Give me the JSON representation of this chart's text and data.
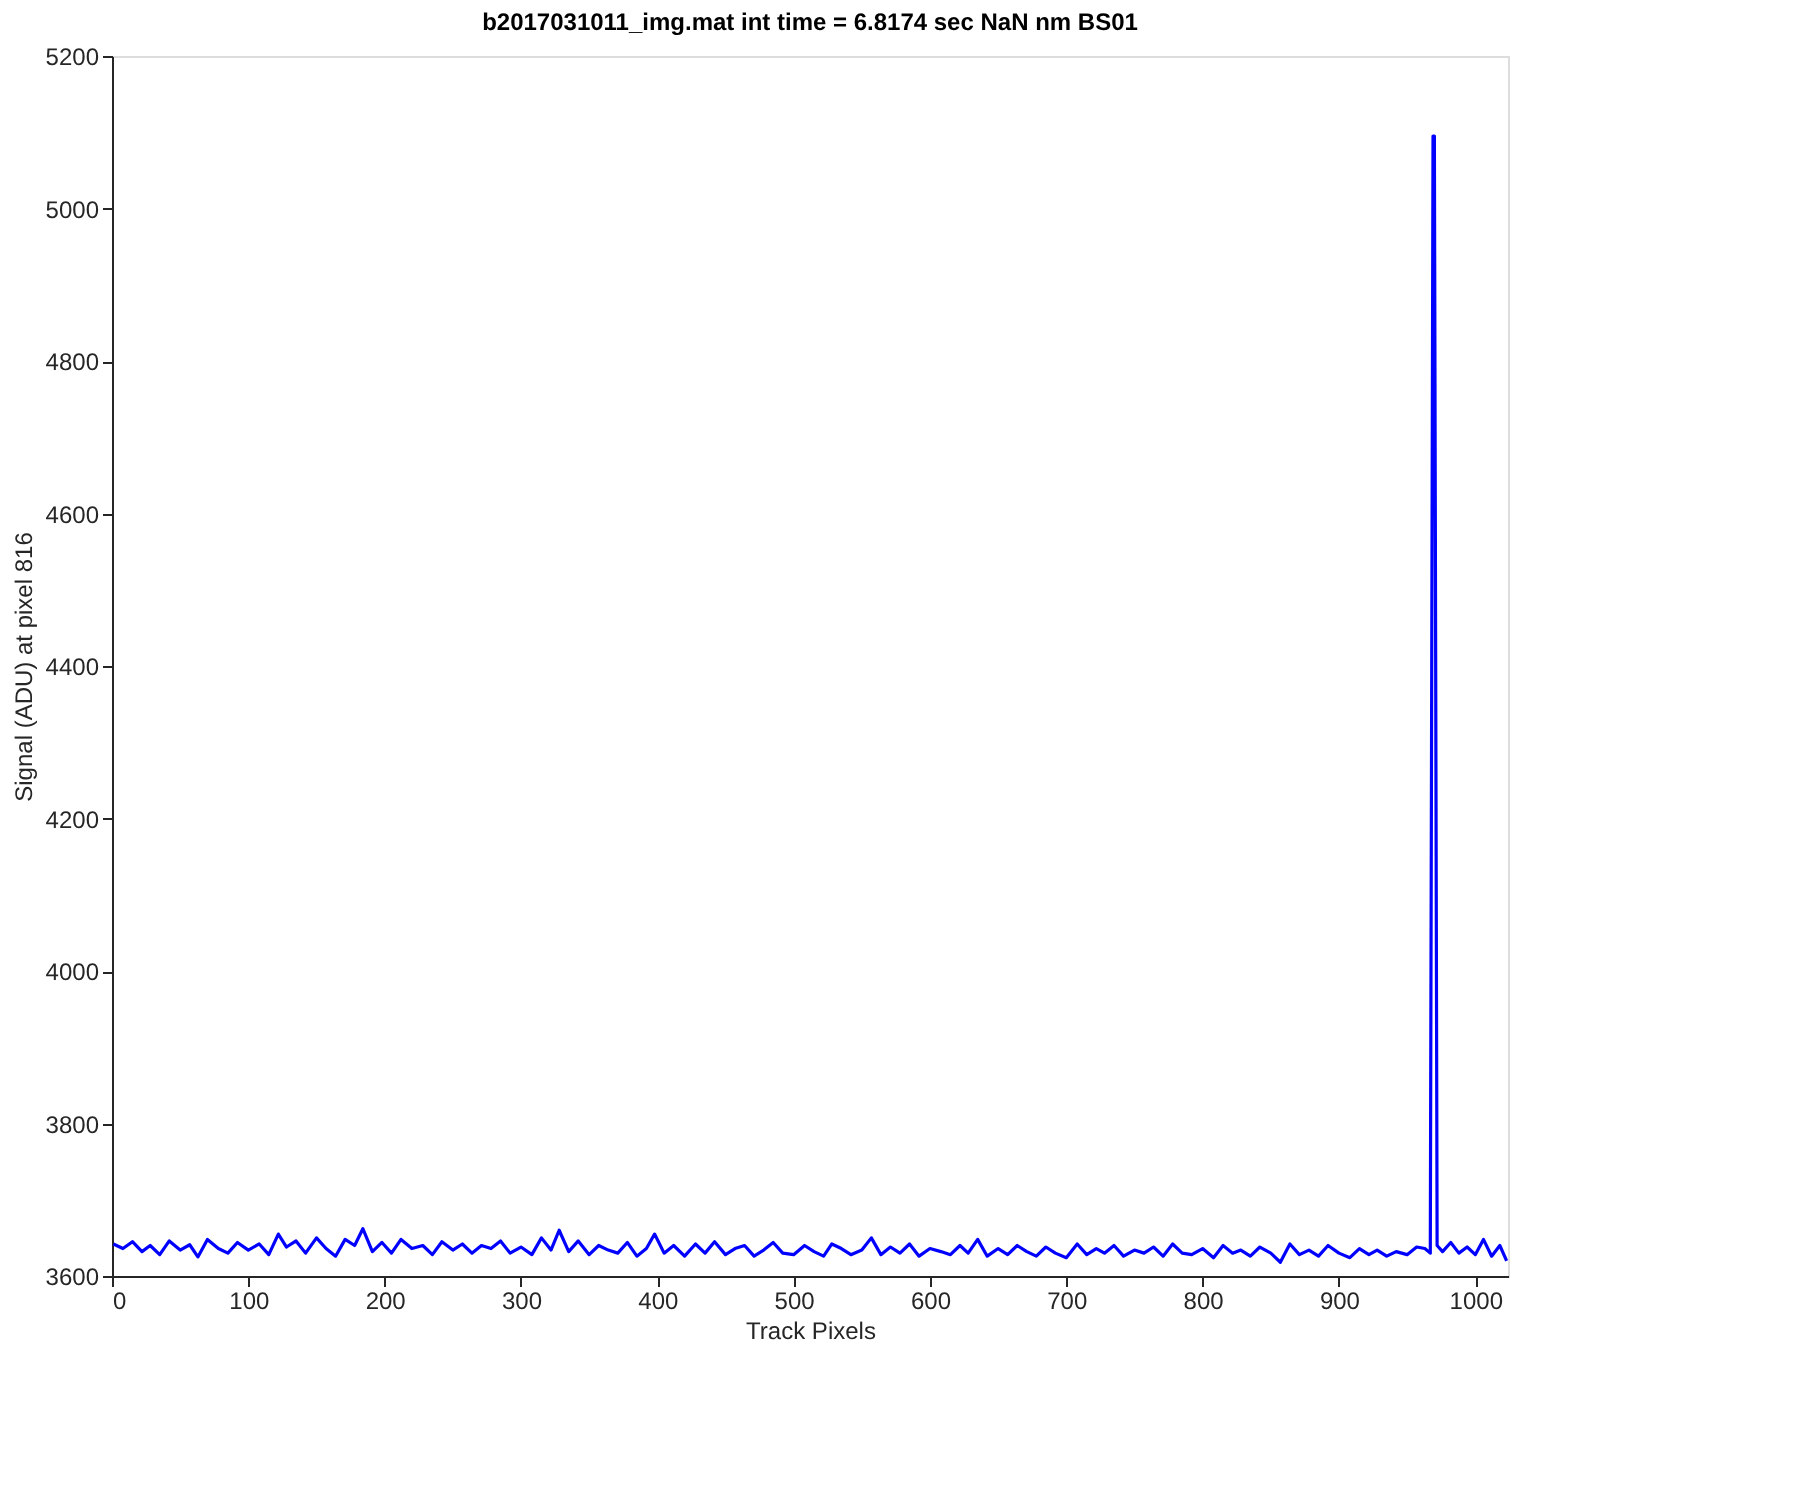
{
  "chart_data": {
    "type": "line",
    "title": "b2017031011_img.mat int time = 6.8174 sec  NaN nm BS01",
    "xlabel": "Track Pixels",
    "ylabel": "Signal (ADU) at pixel 816",
    "xlim": [
      0,
      1024
    ],
    "ylim": [
      3600,
      5200
    ],
    "xticks": [
      0,
      100,
      200,
      300,
      400,
      500,
      600,
      700,
      800,
      900,
      1000
    ],
    "yticks": [
      3600,
      3800,
      4000,
      4200,
      4400,
      4600,
      4800,
      5000,
      5200
    ],
    "grid": false,
    "marker": "none",
    "line_style": "solid",
    "series": [
      {
        "color": "#0000ff",
        "x": [
          1,
          8,
          15,
          22,
          28,
          35,
          42,
          50,
          57,
          63,
          70,
          78,
          85,
          92,
          100,
          108,
          115,
          122,
          128,
          135,
          142,
          150,
          157,
          164,
          171,
          178,
          184,
          191,
          198,
          205,
          212,
          220,
          228,
          235,
          242,
          250,
          257,
          264,
          271,
          278,
          285,
          292,
          300,
          308,
          315,
          322,
          328,
          335,
          342,
          350,
          357,
          364,
          371,
          378,
          385,
          392,
          398,
          405,
          412,
          420,
          428,
          435,
          442,
          450,
          457,
          464,
          471,
          478,
          485,
          492,
          500,
          508,
          515,
          522,
          528,
          535,
          542,
          550,
          557,
          564,
          571,
          578,
          585,
          592,
          600,
          608,
          615,
          622,
          628,
          635,
          642,
          650,
          657,
          664,
          671,
          678,
          685,
          692,
          700,
          708,
          715,
          722,
          728,
          735,
          742,
          750,
          757,
          764,
          771,
          778,
          785,
          792,
          800,
          808,
          815,
          822,
          828,
          835,
          842,
          850,
          857,
          864,
          871,
          878,
          885,
          892,
          900,
          908,
          915,
          922,
          928,
          935,
          942,
          950,
          957,
          963,
          967,
          969,
          970,
          972,
          976,
          982,
          988,
          994,
          1000,
          1006,
          1012,
          1018,
          1023
        ],
        "values": [
          3642,
          3636,
          3645,
          3632,
          3640,
          3628,
          3646,
          3634,
          3641,
          3625,
          3648,
          3636,
          3630,
          3644,
          3634,
          3642,
          3628,
          3655,
          3638,
          3646,
          3630,
          3650,
          3636,
          3626,
          3648,
          3640,
          3662,
          3632,
          3644,
          3630,
          3648,
          3636,
          3640,
          3628,
          3645,
          3634,
          3642,
          3630,
          3640,
          3636,
          3646,
          3630,
          3638,
          3628,
          3650,
          3634,
          3660,
          3632,
          3646,
          3628,
          3640,
          3634,
          3630,
          3644,
          3626,
          3636,
          3655,
          3630,
          3640,
          3626,
          3642,
          3630,
          3645,
          3628,
          3636,
          3640,
          3626,
          3634,
          3644,
          3630,
          3628,
          3640,
          3632,
          3626,
          3642,
          3636,
          3628,
          3634,
          3650,
          3628,
          3638,
          3630,
          3642,
          3626,
          3636,
          3632,
          3628,
          3640,
          3630,
          3648,
          3626,
          3636,
          3628,
          3640,
          3632,
          3626,
          3638,
          3630,
          3624,
          3642,
          3628,
          3636,
          3630,
          3640,
          3626,
          3634,
          3630,
          3638,
          3626,
          3642,
          3630,
          3628,
          3636,
          3624,
          3640,
          3630,
          3634,
          3626,
          3638,
          3630,
          3618,
          3642,
          3628,
          3634,
          3626,
          3640,
          3630,
          3624,
          3636,
          3628,
          3634,
          3626,
          3632,
          3628,
          3638,
          3636,
          3630,
          5095,
          5095,
          3640,
          3632,
          3644,
          3630,
          3638,
          3628,
          3648,
          3626,
          3640,
          3620
        ]
      }
    ]
  }
}
